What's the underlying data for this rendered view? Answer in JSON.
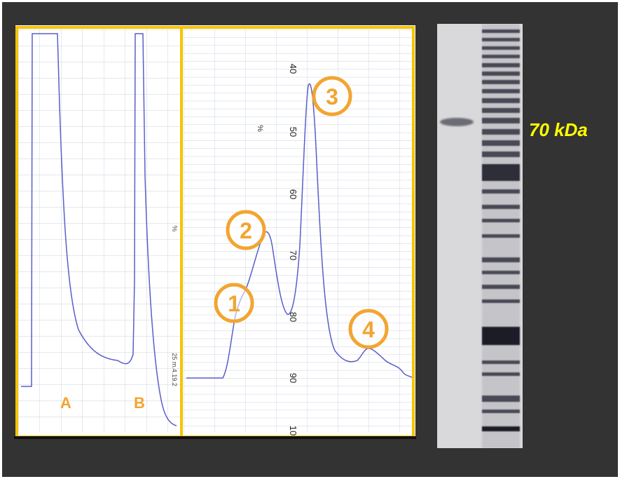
{
  "chromatogram": {
    "section_labels": [
      "A",
      "B"
    ],
    "scale_labels": [
      "40",
      "50",
      "60",
      "70",
      "80",
      "90",
      "10"
    ],
    "percent_marks": [
      "%",
      "%"
    ],
    "recorder_text": "25 m.4.19.2",
    "peaks": [
      {
        "number": "1"
      },
      {
        "number": "2"
      },
      {
        "number": "3"
      },
      {
        "number": "4"
      }
    ],
    "frame_color": "#f5c400",
    "circle_color": "#f2a531",
    "trace_color": "#5a5ec8"
  },
  "gel": {
    "marker_label": "70 kDa",
    "label_color": "#ffff00"
  }
}
